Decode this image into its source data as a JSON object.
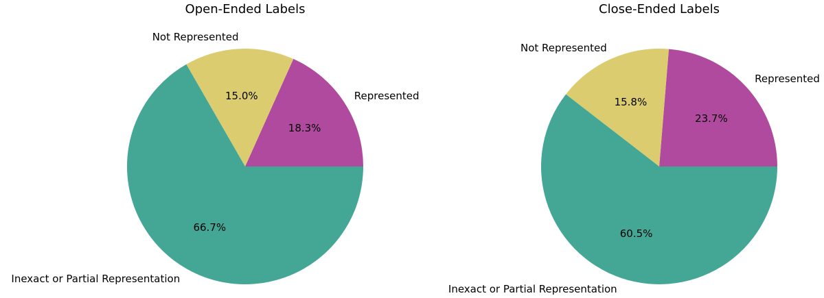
{
  "page": {
    "background_color": "#ffffff",
    "text_color": "#000000"
  },
  "palette": {
    "represented": "#B04A9E",
    "not_represented": "#DACC6F",
    "inexact_or_partial": "#44A796"
  },
  "chart_data": [
    {
      "type": "pie",
      "title": "Open-Ended Labels",
      "start_angle_deg": 0,
      "direction": "counterclockwise",
      "label_distance": 1.1,
      "pct_distance": 0.6,
      "legend": "none",
      "slices": [
        {
          "label": "Represented",
          "value": 18.3,
          "pct_label": "18.3%",
          "color": "#B04A9E"
        },
        {
          "label": "Not Represented",
          "value": 15.0,
          "pct_label": "15.0%",
          "color": "#DACC6F"
        },
        {
          "label": "Inexact or Partial Representation",
          "value": 66.7,
          "pct_label": "66.7%",
          "color": "#44A796"
        }
      ]
    },
    {
      "type": "pie",
      "title": "Close-Ended Labels",
      "start_angle_deg": 0,
      "direction": "counterclockwise",
      "label_distance": 1.1,
      "pct_distance": 0.6,
      "legend": "none",
      "slices": [
        {
          "label": "Represented",
          "value": 23.7,
          "pct_label": "23.7%",
          "color": "#B04A9E"
        },
        {
          "label": "Not Represented",
          "value": 15.8,
          "pct_label": "15.8%",
          "color": "#DACC6F"
        },
        {
          "label": "Inexact or Partial Representation",
          "value": 60.5,
          "pct_label": "60.5%",
          "color": "#44A796"
        }
      ]
    }
  ]
}
